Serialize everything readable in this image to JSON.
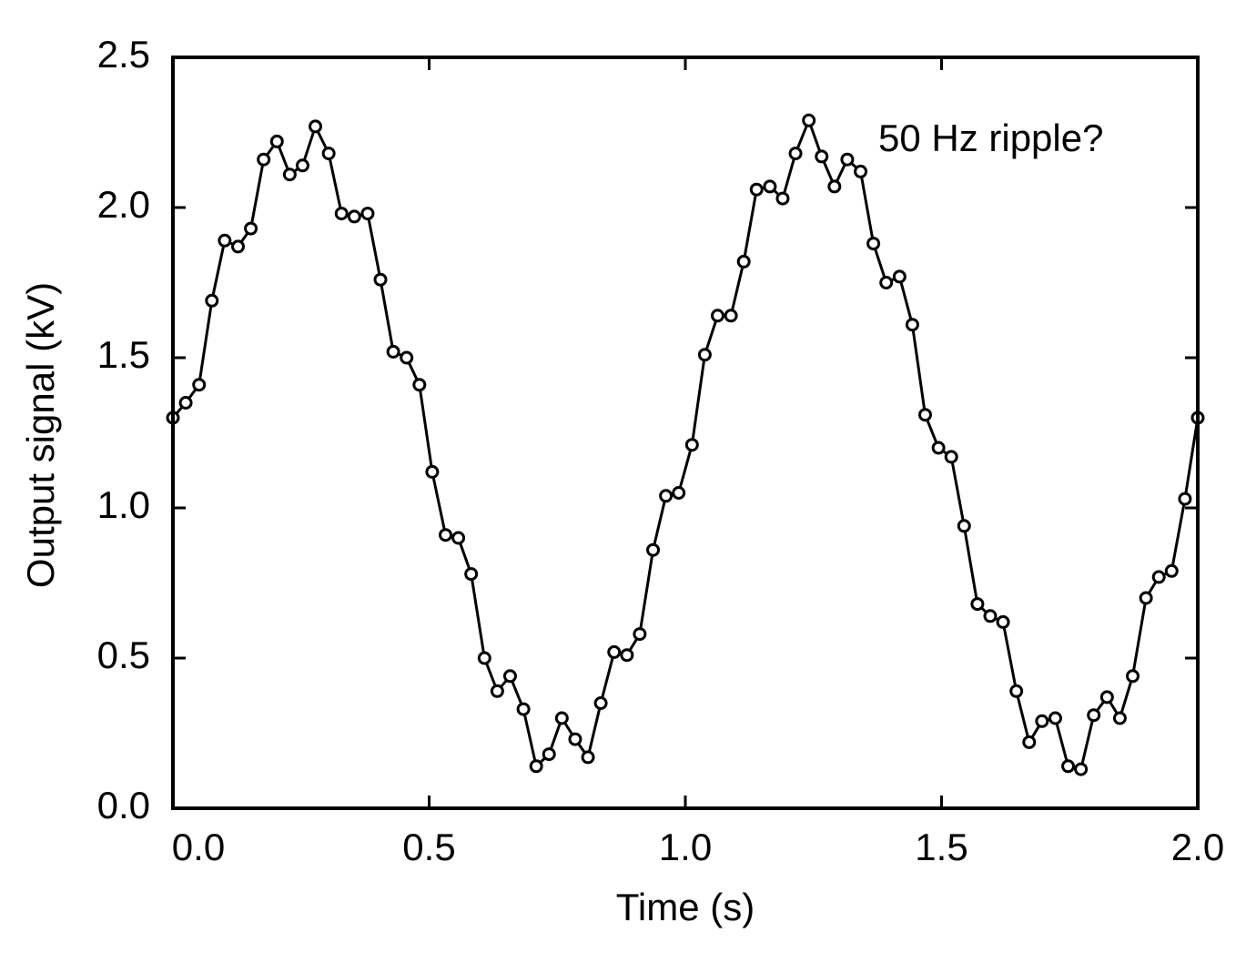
{
  "chart_data": {
    "type": "line",
    "xlabel": "Time (s)",
    "ylabel": "Output signal (kV)",
    "annotation": "50 Hz ripple?",
    "x": [
      0,
      0.025,
      0.051,
      0.076,
      0.101,
      0.127,
      0.152,
      0.177,
      0.203,
      0.228,
      0.253,
      0.278,
      0.304,
      0.329,
      0.354,
      0.38,
      0.405,
      0.43,
      0.456,
      0.481,
      0.506,
      0.532,
      0.557,
      0.582,
      0.608,
      0.633,
      0.658,
      0.684,
      0.709,
      0.734,
      0.759,
      0.785,
      0.81,
      0.835,
      0.861,
      0.886,
      0.911,
      0.937,
      0.962,
      0.987,
      1.013,
      1.038,
      1.063,
      1.089,
      1.114,
      1.139,
      1.165,
      1.19,
      1.215,
      1.241,
      1.266,
      1.291,
      1.316,
      1.342,
      1.367,
      1.392,
      1.418,
      1.443,
      1.468,
      1.494,
      1.519,
      1.544,
      1.57,
      1.595,
      1.62,
      1.646,
      1.671,
      1.696,
      1.722,
      1.747,
      1.772,
      1.797,
      1.823,
      1.848,
      1.873,
      1.899,
      1.924,
      1.949,
      1.975,
      2.0
    ],
    "series": [
      {
        "name": "signal",
        "color": "#000000",
        "values": [
          1.3,
          1.35,
          1.41,
          1.69,
          1.89,
          1.87,
          1.93,
          2.16,
          2.22,
          2.11,
          2.14,
          2.27,
          2.18,
          1.98,
          1.97,
          1.98,
          1.76,
          1.52,
          1.5,
          1.41,
          1.12,
          0.91,
          0.9,
          0.78,
          0.5,
          0.39,
          0.44,
          0.33,
          0.14,
          0.18,
          0.3,
          0.23,
          0.17,
          0.35,
          0.52,
          0.51,
          0.58,
          0.86,
          1.04,
          1.05,
          1.21,
          1.51,
          1.64,
          1.64,
          1.82,
          2.06,
          2.07,
          2.03,
          2.18,
          2.29,
          2.17,
          2.07,
          2.16,
          2.12,
          1.88,
          1.75,
          1.77,
          1.61,
          1.31,
          1.2,
          1.17,
          0.94,
          0.68,
          0.64,
          0.62,
          0.39,
          0.22,
          0.29,
          0.3,
          0.14,
          0.13,
          0.31,
          0.37,
          0.3,
          0.44,
          0.7,
          0.77,
          0.79,
          1.03,
          1.3
        ]
      }
    ],
    "xlim": [
      0,
      2
    ],
    "ylim": [
      0,
      2.5
    ],
    "xticks": [
      {
        "value": 0,
        "label": "0.0"
      },
      0.5,
      {
        "value": 1,
        "label": "1.0"
      },
      1.5,
      {
        "value": 2,
        "label": "2.0"
      }
    ],
    "yticks": [
      {
        "value": 0,
        "label": "0.0"
      },
      0.5,
      {
        "value": 1,
        "label": "1.0"
      },
      1.5,
      {
        "value": 2,
        "label": "2.0"
      },
      2.5
    ],
    "grid": false
  }
}
